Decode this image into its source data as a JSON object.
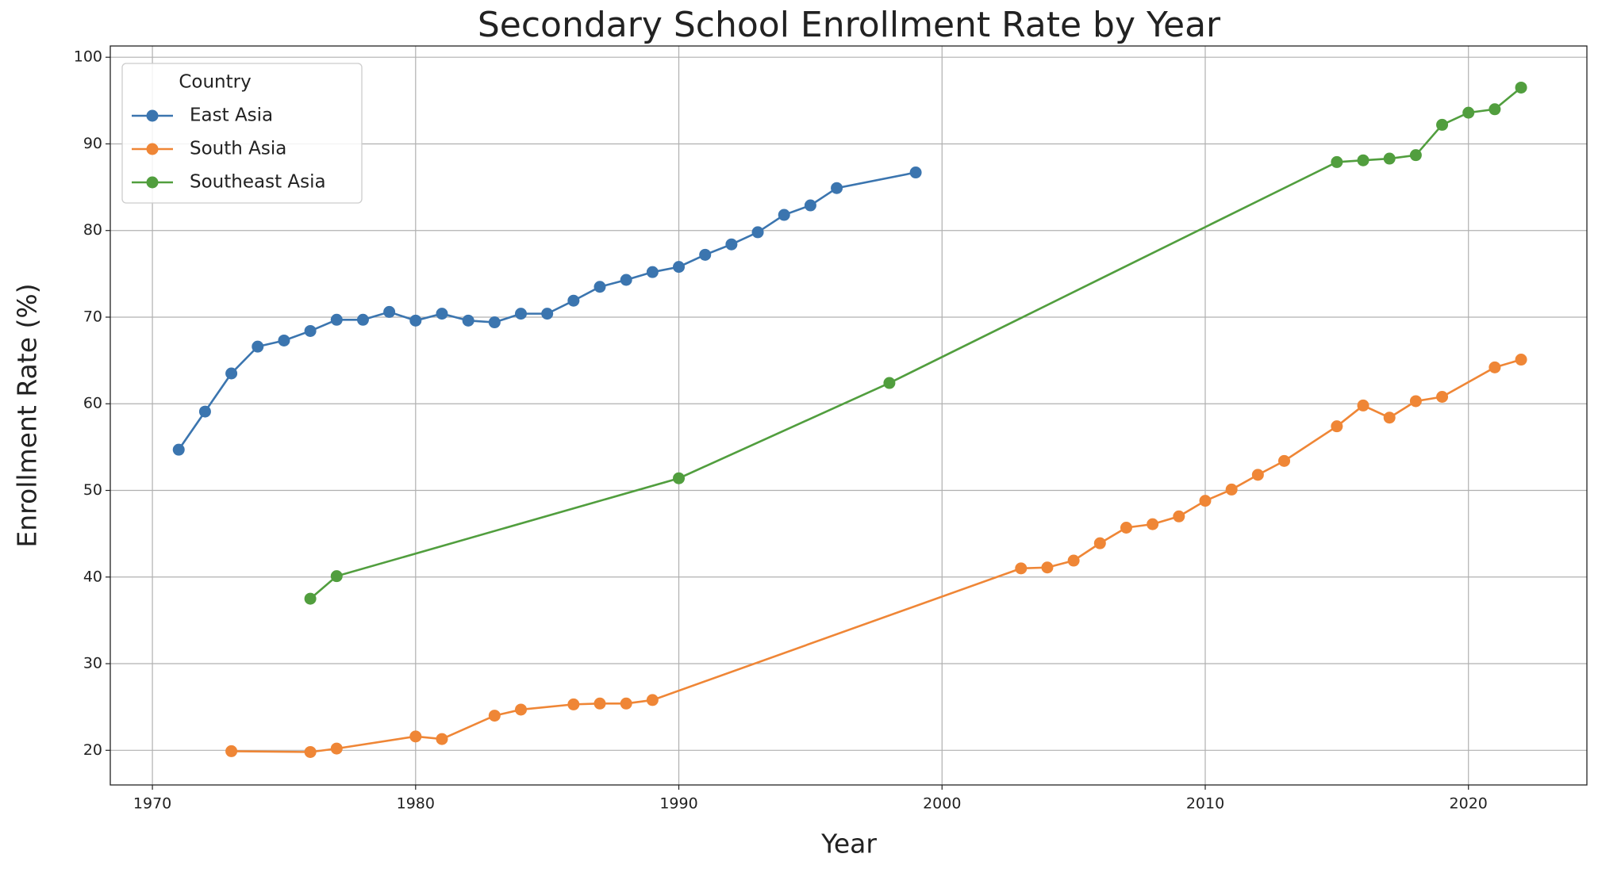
{
  "chart_data": {
    "type": "line",
    "title": "Secondary School Enrollment Rate by Year",
    "x_label": "Year",
    "y_label": "Enrollment Rate (%)",
    "legend_title": "Country",
    "legend": "upper left",
    "grid": true,
    "marker": "o",
    "xlim": [
      1968.4,
      2024.5
    ],
    "ylim": [
      16.0,
      101.3
    ],
    "xticks": [
      1970,
      1980,
      1990,
      2000,
      2010,
      2020
    ],
    "yticks": [
      20,
      30,
      40,
      50,
      60,
      70,
      80,
      90,
      100
    ],
    "series": [
      {
        "name": "East Asia",
        "color": "#3b75af",
        "x": [
          1971,
          1972,
          1973,
          1974,
          1975,
          1976,
          1977,
          1978,
          1979,
          1980,
          1981,
          1982,
          1983,
          1984,
          1985,
          1986,
          1987,
          1988,
          1989,
          1990,
          1991,
          1992,
          1993,
          1994,
          1995,
          1996,
          1999
        ],
        "values": [
          54.7,
          59.1,
          63.5,
          66.6,
          67.3,
          68.4,
          69.7,
          69.7,
          70.6,
          69.6,
          70.4,
          69.6,
          69.4,
          70.4,
          70.4,
          71.9,
          73.5,
          74.3,
          75.2,
          75.8,
          77.2,
          78.4,
          79.8,
          81.8,
          82.9,
          84.9,
          86.7
        ]
      },
      {
        "name": "South Asia",
        "color": "#ef8636",
        "x": [
          1973,
          1976,
          1977,
          1980,
          1981,
          1983,
          1984,
          1986,
          1987,
          1988,
          1989,
          2003,
          2004,
          2005,
          2006,
          2007,
          2008,
          2009,
          2010,
          2011,
          2012,
          2013,
          2015,
          2016,
          2017,
          2018,
          2019,
          2021,
          2022
        ],
        "values": [
          19.9,
          19.8,
          20.2,
          21.6,
          21.3,
          24.0,
          24.7,
          25.3,
          25.4,
          25.4,
          25.8,
          41.0,
          41.1,
          41.9,
          43.9,
          45.7,
          46.1,
          47.0,
          48.8,
          50.1,
          51.8,
          53.4,
          57.4,
          59.8,
          58.4,
          60.3,
          60.8,
          64.2,
          65.1
        ]
      },
      {
        "name": "Southeast Asia",
        "color": "#519e3e",
        "x": [
          1976,
          1977,
          1990,
          1998,
          2015,
          2016,
          2017,
          2018,
          2019,
          2020,
          2021,
          2022
        ],
        "values": [
          37.5,
          40.1,
          51.4,
          62.4,
          87.9,
          88.1,
          88.3,
          88.7,
          92.2,
          93.6,
          94.0,
          96.5
        ]
      }
    ]
  }
}
